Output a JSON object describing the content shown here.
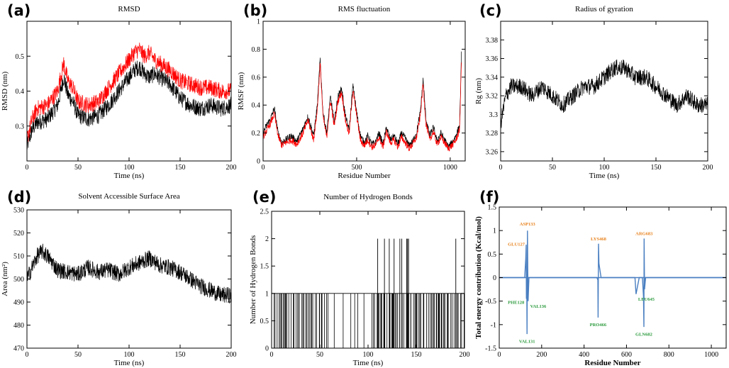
{
  "chart_data": [
    {
      "panel_label": "(a)",
      "type": "line",
      "title": "RMSD",
      "xlabel": "Time (ns)",
      "ylabel": "RMSD (nm)",
      "xlim": [
        0,
        200
      ],
      "ylim": [
        0.2,
        0.6
      ],
      "xticks": [
        0,
        50,
        100,
        150,
        200
      ],
      "yticks": [
        0.3,
        0.4,
        0.5
      ],
      "series": [
        {
          "color": "#000000",
          "x": [
            0,
            5,
            10,
            20,
            30,
            36,
            40,
            45,
            50,
            60,
            70,
            80,
            90,
            100,
            105,
            110,
            115,
            120,
            125,
            130,
            140,
            150,
            160,
            170,
            180,
            190,
            200
          ],
          "y": [
            0.24,
            0.29,
            0.31,
            0.32,
            0.36,
            0.44,
            0.39,
            0.37,
            0.33,
            0.32,
            0.33,
            0.36,
            0.4,
            0.44,
            0.46,
            0.47,
            0.45,
            0.44,
            0.45,
            0.44,
            0.42,
            0.38,
            0.36,
            0.35,
            0.36,
            0.35,
            0.36
          ]
        },
        {
          "color": "#ff0000",
          "x": [
            0,
            5,
            10,
            20,
            30,
            36,
            40,
            45,
            50,
            60,
            70,
            80,
            90,
            100,
            105,
            110,
            115,
            120,
            125,
            130,
            140,
            150,
            160,
            170,
            180,
            190,
            200
          ],
          "y": [
            0.26,
            0.32,
            0.35,
            0.36,
            0.4,
            0.48,
            0.43,
            0.41,
            0.37,
            0.36,
            0.37,
            0.41,
            0.45,
            0.49,
            0.51,
            0.52,
            0.5,
            0.51,
            0.49,
            0.48,
            0.46,
            0.43,
            0.42,
            0.41,
            0.41,
            0.4,
            0.4
          ]
        }
      ]
    },
    {
      "panel_label": "(b)",
      "type": "line",
      "title": "RMS fluctuation",
      "xlabel": "Residue Number",
      "ylabel": "RMSF (nm)",
      "xlim": [
        0,
        1080
      ],
      "ylim": [
        0,
        1
      ],
      "xticks": [
        0,
        500,
        1000
      ],
      "yticks": [
        0,
        0.2,
        0.4,
        0.6,
        0.8,
        1
      ],
      "series": [
        {
          "color": "#000000",
          "x": [
            0,
            20,
            40,
            60,
            80,
            100,
            120,
            150,
            180,
            210,
            240,
            270,
            290,
            305,
            320,
            340,
            360,
            380,
            400,
            420,
            440,
            460,
            480,
            500,
            520,
            540,
            560,
            580,
            600,
            620,
            640,
            660,
            680,
            700,
            720,
            740,
            760,
            780,
            800,
            820,
            840,
            855,
            870,
            890,
            910,
            930,
            950,
            970,
            990,
            1010,
            1030,
            1050,
            1060
          ],
          "y": [
            0.2,
            0.26,
            0.3,
            0.38,
            0.2,
            0.13,
            0.15,
            0.18,
            0.14,
            0.22,
            0.32,
            0.18,
            0.4,
            0.73,
            0.35,
            0.2,
            0.46,
            0.28,
            0.46,
            0.52,
            0.32,
            0.22,
            0.54,
            0.35,
            0.18,
            0.13,
            0.18,
            0.12,
            0.13,
            0.2,
            0.12,
            0.24,
            0.15,
            0.18,
            0.12,
            0.2,
            0.16,
            0.11,
            0.14,
            0.2,
            0.35,
            0.58,
            0.3,
            0.18,
            0.24,
            0.14,
            0.2,
            0.15,
            0.1,
            0.13,
            0.18,
            0.25,
            0.76
          ]
        },
        {
          "color": "#ff0000",
          "x": [
            0,
            20,
            40,
            60,
            80,
            100,
            120,
            150,
            180,
            210,
            240,
            270,
            290,
            305,
            320,
            340,
            360,
            380,
            400,
            420,
            440,
            460,
            480,
            500,
            520,
            540,
            560,
            580,
            600,
            620,
            640,
            660,
            680,
            700,
            720,
            740,
            760,
            780,
            800,
            820,
            840,
            855,
            870,
            890,
            910,
            930,
            950,
            970,
            990,
            1010,
            1030,
            1050,
            1060
          ],
          "y": [
            0.17,
            0.22,
            0.27,
            0.34,
            0.18,
            0.11,
            0.13,
            0.15,
            0.12,
            0.19,
            0.29,
            0.15,
            0.37,
            0.7,
            0.32,
            0.17,
            0.43,
            0.25,
            0.43,
            0.49,
            0.29,
            0.19,
            0.51,
            0.32,
            0.15,
            0.11,
            0.15,
            0.1,
            0.11,
            0.17,
            0.1,
            0.21,
            0.13,
            0.15,
            0.1,
            0.17,
            0.13,
            0.09,
            0.12,
            0.17,
            0.32,
            0.55,
            0.27,
            0.15,
            0.21,
            0.12,
            0.17,
            0.13,
            0.09,
            0.11,
            0.15,
            0.22,
            0.72
          ]
        }
      ]
    },
    {
      "panel_label": "(c)",
      "type": "line",
      "title": "Radius of gyration",
      "xlabel": "Time (ns)",
      "ylabel": "Rg (nm)",
      "xlim": [
        0,
        200
      ],
      "ylim": [
        3.25,
        3.4
      ],
      "xticks": [
        0,
        50,
        100,
        150,
        200
      ],
      "yticks": [
        3.26,
        3.28,
        3.3,
        3.32,
        3.34,
        3.36,
        3.38
      ],
      "series": [
        {
          "color": "#000000",
          "x": [
            0,
            5,
            10,
            20,
            30,
            40,
            50,
            60,
            70,
            80,
            90,
            100,
            110,
            120,
            130,
            140,
            150,
            160,
            170,
            180,
            190,
            200
          ],
          "y": [
            3.29,
            3.32,
            3.33,
            3.33,
            3.32,
            3.33,
            3.32,
            3.31,
            3.32,
            3.33,
            3.33,
            3.34,
            3.35,
            3.35,
            3.34,
            3.34,
            3.33,
            3.32,
            3.31,
            3.32,
            3.31,
            3.31
          ]
        }
      ]
    },
    {
      "panel_label": "(d)",
      "type": "line",
      "title": "Solvent Accessible Surface Area",
      "xlabel": "Time (ns)",
      "ylabel": "Area (nm²)",
      "xlim": [
        0,
        200
      ],
      "ylim": [
        470,
        530
      ],
      "xticks": [
        0,
        50,
        100,
        150,
        200
      ],
      "yticks": [
        470,
        480,
        490,
        500,
        510,
        520,
        530
      ],
      "series": [
        {
          "color": "#000000",
          "x": [
            0,
            5,
            10,
            15,
            20,
            30,
            40,
            50,
            60,
            70,
            80,
            90,
            100,
            110,
            120,
            130,
            140,
            150,
            160,
            170,
            180,
            190,
            200
          ],
          "y": [
            500,
            505,
            510,
            512,
            510,
            504,
            503,
            502,
            505,
            503,
            504,
            502,
            505,
            507,
            509,
            506,
            505,
            503,
            500,
            497,
            495,
            493,
            493
          ]
        }
      ]
    },
    {
      "panel_label": "(e)",
      "type": "bar",
      "title": "Number of Hydrogen Bonds",
      "xlabel": "Time (ns)",
      "ylabel": "Number of Hydrogen Bonds",
      "xlim": [
        0,
        200
      ],
      "ylim": [
        0,
        2.5
      ],
      "xticks": [
        0,
        50,
        100,
        150,
        200
      ],
      "yticks": [
        0,
        0.5,
        1,
        1.5,
        2,
        2.5
      ],
      "values_2_at": [
        110,
        117,
        122,
        127,
        133,
        135,
        140,
        141,
        142,
        191
      ]
    },
    {
      "panel_label": "(f)",
      "type": "line",
      "title": "",
      "xlabel": "Residue Number",
      "ylabel": "Total energy contribution (Kcal/mol)",
      "xlim": [
        0,
        1070
      ],
      "ylim": [
        -1.5,
        1.5
      ],
      "xticks": [
        0,
        200,
        400,
        600,
        800,
        1000
      ],
      "yticks": [
        -1.5,
        -1,
        -0.5,
        0,
        0.5,
        1,
        1.5
      ],
      "series": [
        {
          "color": "#4a7fc1",
          "x": [
            0,
            100,
            120,
            125,
            127,
            128,
            130,
            131,
            133,
            135,
            136,
            140,
            150,
            460,
            465,
            466,
            468,
            470,
            480,
            640,
            645,
            660,
            675,
            680,
            682,
            683,
            685,
            690,
            700,
            1070
          ],
          "y": [
            0,
            0,
            0,
            0.4,
            0.7,
            -0.45,
            -0.3,
            -1.2,
            1.0,
            -0.2,
            -0.5,
            0,
            0,
            0,
            -0.05,
            -0.85,
            0.72,
            0.3,
            0,
            0,
            -0.35,
            0,
            0,
            -0.4,
            -1.05,
            0.83,
            -0.25,
            0,
            0,
            0
          ]
        }
      ],
      "annotations": [
        {
          "text": "ASP133",
          "color": "#e8811c",
          "x": 133,
          "y": 1.05
        },
        {
          "text": "GLU127",
          "color": "#e8811c",
          "x": 127,
          "y": 0.72
        },
        {
          "text": "LYS468",
          "color": "#e8811c",
          "x": 468,
          "y": 0.75
        },
        {
          "text": "ARG683",
          "color": "#e8811c",
          "x": 683,
          "y": 0.86
        },
        {
          "text": "PHE128",
          "color": "#2a9a3c",
          "x": 128,
          "y": -0.5
        },
        {
          "text": "VAL136",
          "color": "#2a9a3c",
          "x": 136,
          "y": -0.55
        },
        {
          "text": "VAL131",
          "color": "#2a9a3c",
          "x": 131,
          "y": -1.25
        },
        {
          "text": "PRO466",
          "color": "#2a9a3c",
          "x": 466,
          "y": -0.9
        },
        {
          "text": "LEU645",
          "color": "#2a9a3c",
          "x": 645,
          "y": -0.4
        },
        {
          "text": "GLN682",
          "color": "#2a9a3c",
          "x": 682,
          "y": -1.1
        }
      ]
    }
  ]
}
